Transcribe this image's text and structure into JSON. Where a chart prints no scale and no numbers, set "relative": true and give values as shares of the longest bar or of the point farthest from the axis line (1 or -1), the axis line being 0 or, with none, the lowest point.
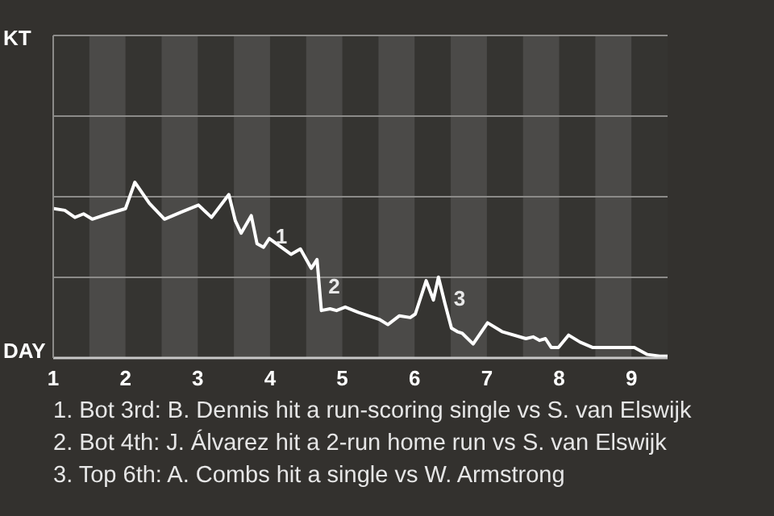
{
  "chart_data": {
    "type": "line",
    "relative": true,
    "x": [
      1.01,
      1.16,
      1.3,
      1.42,
      1.54,
      1.76,
      2.0,
      2.13,
      2.33,
      2.54,
      2.77,
      3.01,
      3.19,
      3.43,
      3.52,
      3.6,
      3.74,
      3.82,
      3.91,
      3.99,
      4.29,
      4.42,
      4.57,
      4.65,
      4.71,
      4.83,
      4.92,
      5.04,
      5.22,
      5.51,
      5.63,
      5.79,
      5.94,
      6.01,
      6.16,
      6.26,
      6.33,
      6.42,
      6.51,
      6.59,
      6.66,
      6.81,
      7.01,
      7.21,
      7.54,
      7.64,
      7.73,
      7.81,
      7.89,
      7.99,
      8.13,
      8.29,
      8.46,
      8.63,
      9.04,
      9.22,
      9.39,
      9.5
    ],
    "series": [
      {
        "color": "#ffffff",
        "values": [
          0.85,
          0.84,
          0.8,
          0.82,
          0.79,
          0.82,
          0.85,
          1,
          0.88,
          0.79,
          0.83,
          0.87,
          0.8,
          0.93,
          0.78,
          0.71,
          0.81,
          0.65,
          0.63,
          0.68,
          0.59,
          0.62,
          0.51,
          0.56,
          0.27,
          0.28,
          0.27,
          0.29,
          0.26,
          0.22,
          0.19,
          0.24,
          0.23,
          0.25,
          0.44,
          0.33,
          0.46,
          0.31,
          0.17,
          0.15,
          0.14,
          0.08,
          0.2,
          0.15,
          0.11,
          0.12,
          0.1,
          0.11,
          0.06,
          0.06,
          0.13,
          0.09,
          0.06,
          0.06,
          0.06,
          0.02,
          0.01,
          0.01
        ]
      }
    ],
    "xlim": [
      1,
      9.5
    ],
    "xticks": [
      1,
      2,
      3,
      4,
      5,
      6,
      7,
      8,
      9
    ],
    "ref_lines": [
      {
        "axis": "y",
        "value": 0.459,
        "color": "#8c8b89"
      },
      {
        "axis": "y",
        "value": 0.917,
        "color": "#8c8b89"
      },
      {
        "axis": "y",
        "value": 1.376,
        "color": "#8c8b89"
      }
    ],
    "legend": false,
    "marker": "none",
    "line_style": "solid",
    "bands": [
      {
        "axis": "x",
        "from": 1.5,
        "to": 2,
        "color": "#4b4a48"
      },
      {
        "axis": "x",
        "from": 2.5,
        "to": 3,
        "color": "#4b4a48"
      },
      {
        "axis": "x",
        "from": 3.5,
        "to": 4,
        "color": "#4b4a48"
      },
      {
        "axis": "x",
        "from": 4.5,
        "to": 5,
        "color": "#4b4a48"
      },
      {
        "axis": "x",
        "from": 5.5,
        "to": 6,
        "color": "#4b4a48"
      },
      {
        "axis": "x",
        "from": 6.5,
        "to": 7,
        "color": "#4b4a48"
      },
      {
        "axis": "x",
        "from": 7.5,
        "to": 8,
        "color": "#4b4a48"
      },
      {
        "axis": "x",
        "from": 8.5,
        "to": 9,
        "color": "#4b4a48"
      }
    ],
    "annotations": [
      "KT",
      "DAY",
      {
        "text": "1",
        "x": 3.91,
        "y": 0.63
      },
      {
        "text": "2",
        "x": 4.71,
        "y": 0.27
      },
      {
        "text": "3",
        "x": 6.42,
        "y": 0.31
      },
      "1. Bot 3rd: B. Dennis hit a run-scoring single vs S. van Elswijk",
      "2. Bot 4th: J. Álvarez hit a 2-run home run vs S. van Elswijk",
      "3. Top 6th: A. Combs hit a single vs W. Armstrong"
    ]
  }
}
